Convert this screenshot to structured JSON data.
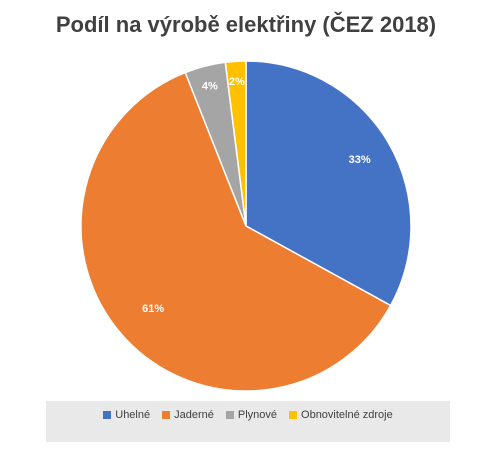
{
  "chart_data": {
    "type": "pie",
    "title": "Podíl na výrobě elektřiny (ČEZ 2018)",
    "slices": [
      {
        "label": "Uhelné",
        "value": 33,
        "display": "33%",
        "color": "#4472c4"
      },
      {
        "label": "Jaderné",
        "value": 61,
        "display": "61%",
        "color": "#ed7d31"
      },
      {
        "label": "Plynové",
        "value": 4,
        "display": "4%",
        "color": "#a5a5a5"
      },
      {
        "label": "Obnovitelné zdroje",
        "value": 2,
        "display": "2%",
        "color": "#ffc000"
      }
    ],
    "legend_position": "bottom",
    "start_angle_deg": 0,
    "direction": "clockwise"
  }
}
